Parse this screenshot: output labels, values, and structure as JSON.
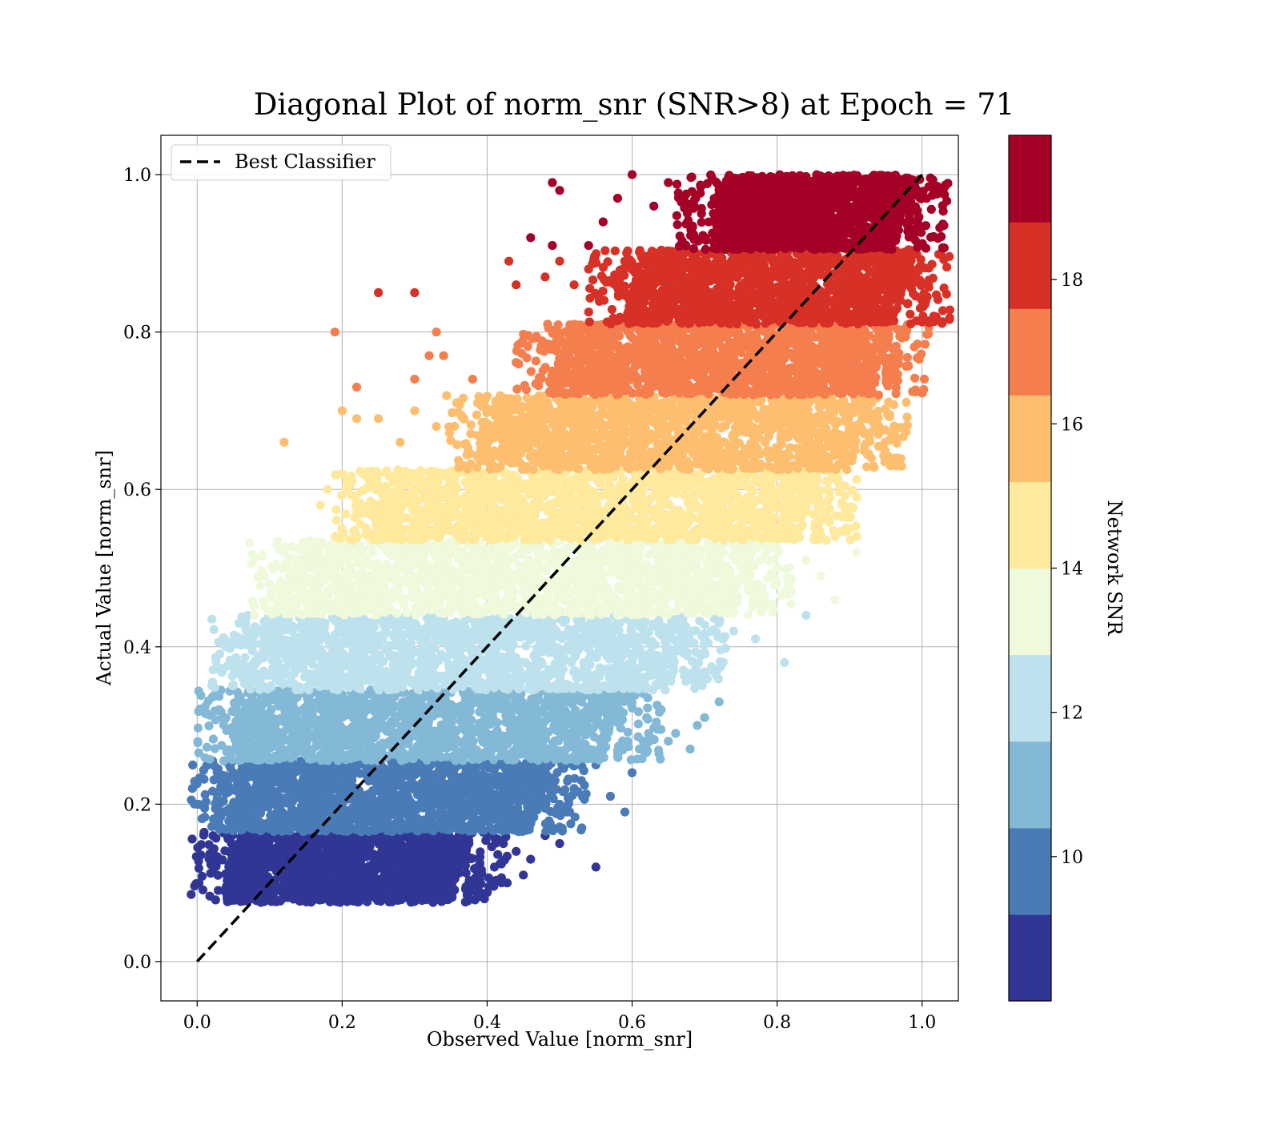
{
  "chart_data": {
    "type": "scatter",
    "title": "Diagonal Plot of norm_snr (SNR>8) at Epoch = 71",
    "xlabel": "Observed Value [norm_snr]",
    "ylabel": "Actual Value [norm_snr]",
    "xlim": [
      -0.05,
      1.05
    ],
    "ylim": [
      -0.05,
      1.05
    ],
    "x_ticks": [
      "0.0",
      "0.2",
      "0.4",
      "0.6",
      "0.8",
      "1.0"
    ],
    "y_ticks": [
      "0.0",
      "0.2",
      "0.4",
      "0.6",
      "0.8",
      "1.0"
    ],
    "grid": true,
    "legend": {
      "placement": "top-left",
      "entries": [
        "Best Classifier"
      ]
    },
    "best_classifier_line": {
      "style": "dashed",
      "color": "#000000",
      "x": [
        0,
        1
      ],
      "y": [
        0,
        1
      ]
    },
    "colorbar": {
      "label": "Network SNR",
      "range": [
        8,
        20
      ],
      "tick_values": [
        10,
        12,
        14,
        16,
        18
      ],
      "tick_labels": [
        "10",
        "12",
        "14",
        "16",
        "18"
      ],
      "colors": [
        "#313695",
        "#4a7bb7",
        "#83b8d7",
        "#bde2ee",
        "#eff9db",
        "#fee99d",
        "#fdbf6f",
        "#f57e4e",
        "#d73027",
        "#a50026"
      ]
    },
    "snr_bands": [
      {
        "snr_range": [
          8,
          9.2
        ],
        "color": "#313695",
        "y_range": [
          0.075,
          0.165
        ],
        "dense_x": [
          0.05,
          0.37
        ],
        "stragglers": [
          [
            0.04,
            0.095
          ],
          [
            0.39,
            0.083
          ],
          [
            0.42,
            0.1
          ],
          [
            0.44,
            0.14
          ],
          [
            0.46,
            0.13
          ],
          [
            0.5,
            0.15
          ],
          [
            0.55,
            0.12
          ],
          [
            0.48,
            0.16
          ],
          [
            0.41,
            0.12
          ],
          [
            0.45,
            0.11
          ]
        ]
      },
      {
        "snr_range": [
          9.2,
          10.4
        ],
        "color": "#4a7bb7",
        "y_range": [
          0.165,
          0.255
        ],
        "dense_x": [
          0.05,
          0.48
        ],
        "stragglers": [
          [
            0.05,
            0.24
          ],
          [
            0.5,
            0.2
          ],
          [
            0.52,
            0.22
          ],
          [
            0.57,
            0.21
          ],
          [
            0.59,
            0.19
          ],
          [
            0.6,
            0.24
          ],
          [
            0.55,
            0.25
          ],
          [
            0.53,
            0.23
          ],
          [
            0.51,
            0.19
          ],
          [
            0.49,
            0.17
          ]
        ]
      },
      {
        "snr_range": [
          10.4,
          11.6
        ],
        "color": "#83b8d7",
        "y_range": [
          0.255,
          0.345
        ],
        "dense_x": [
          0.06,
          0.58
        ],
        "stragglers": [
          [
            0.06,
            0.29
          ],
          [
            0.62,
            0.31
          ],
          [
            0.64,
            0.32
          ],
          [
            0.66,
            0.29
          ],
          [
            0.69,
            0.3
          ],
          [
            0.7,
            0.31
          ],
          [
            0.72,
            0.33
          ],
          [
            0.68,
            0.27
          ],
          [
            0.65,
            0.28
          ],
          [
            0.61,
            0.27
          ]
        ]
      },
      {
        "snr_range": [
          11.6,
          12.8
        ],
        "color": "#bde2ee",
        "y_range": [
          0.345,
          0.44
        ],
        "dense_x": [
          0.08,
          0.67
        ],
        "stragglers": [
          [
            0.07,
            0.44
          ],
          [
            0.07,
            0.37
          ],
          [
            0.7,
            0.41
          ],
          [
            0.72,
            0.43
          ],
          [
            0.74,
            0.42
          ],
          [
            0.77,
            0.41
          ],
          [
            0.81,
            0.38
          ],
          [
            0.84,
            0.44
          ],
          [
            0.68,
            0.36
          ],
          [
            0.71,
            0.37
          ]
        ]
      },
      {
        "snr_range": [
          12.8,
          14
        ],
        "color": "#eff9db",
        "y_range": [
          0.44,
          0.535
        ],
        "dense_x": [
          0.13,
          0.76
        ],
        "stragglers": [
          [
            0.1,
            0.48
          ],
          [
            0.11,
            0.53
          ],
          [
            0.12,
            0.52
          ],
          [
            0.14,
            0.5
          ],
          [
            0.8,
            0.5
          ],
          [
            0.82,
            0.47
          ],
          [
            0.84,
            0.51
          ],
          [
            0.86,
            0.49
          ],
          [
            0.88,
            0.46
          ],
          [
            0.91,
            0.52
          ]
        ]
      },
      {
        "snr_range": [
          14,
          15.2
        ],
        "color": "#fee99d",
        "y_range": [
          0.535,
          0.625
        ],
        "dense_x": [
          0.25,
          0.85
        ],
        "stragglers": [
          [
            0.17,
            0.58
          ],
          [
            0.18,
            0.6
          ],
          [
            0.2,
            0.62
          ],
          [
            0.22,
            0.57
          ],
          [
            0.87,
            0.6
          ],
          [
            0.89,
            0.58
          ],
          [
            0.9,
            0.55
          ],
          [
            0.88,
            0.54
          ],
          [
            0.86,
            0.56
          ],
          [
            0.91,
            0.59
          ]
        ]
      },
      {
        "snr_range": [
          15.2,
          16.4
        ],
        "color": "#fdbf6f",
        "y_range": [
          0.625,
          0.72
        ],
        "dense_x": [
          0.4,
          0.92
        ],
        "stragglers": [
          [
            0.12,
            0.66
          ],
          [
            0.2,
            0.7
          ],
          [
            0.22,
            0.69
          ],
          [
            0.25,
            0.69
          ],
          [
            0.28,
            0.66
          ],
          [
            0.3,
            0.7
          ],
          [
            0.33,
            0.68
          ],
          [
            0.92,
            0.65
          ],
          [
            0.93,
            0.69
          ],
          [
            0.94,
            0.67
          ]
        ]
      },
      {
        "snr_range": [
          16.4,
          17.6
        ],
        "color": "#f57e4e",
        "y_range": [
          0.72,
          0.81
        ],
        "dense_x": [
          0.5,
          0.95
        ],
        "stragglers": [
          [
            0.19,
            0.8
          ],
          [
            0.22,
            0.73
          ],
          [
            0.3,
            0.74
          ],
          [
            0.32,
            0.77
          ],
          [
            0.33,
            0.8
          ],
          [
            0.34,
            0.77
          ],
          [
            0.38,
            0.74
          ],
          [
            0.96,
            0.75
          ],
          [
            0.94,
            0.72
          ],
          [
            0.96,
            0.78
          ]
        ]
      },
      {
        "snr_range": [
          17.6,
          18.8
        ],
        "color": "#d73027",
        "y_range": [
          0.81,
          0.905
        ],
        "dense_x": [
          0.6,
          0.98
        ],
        "stragglers": [
          [
            0.25,
            0.85
          ],
          [
            0.3,
            0.85
          ],
          [
            0.43,
            0.89
          ],
          [
            0.44,
            0.86
          ],
          [
            0.48,
            0.87
          ],
          [
            0.5,
            0.89
          ],
          [
            0.52,
            0.86
          ],
          [
            0.54,
            0.88
          ],
          [
            0.98,
            0.86
          ],
          [
            0.97,
            0.84
          ]
        ]
      },
      {
        "snr_range": [
          18.8,
          20
        ],
        "color": "#a50026",
        "y_range": [
          0.905,
          1.0
        ],
        "dense_x": [
          0.72,
          0.98
        ],
        "stragglers": [
          [
            0.46,
            0.92
          ],
          [
            0.49,
            0.91
          ],
          [
            0.49,
            0.99
          ],
          [
            0.5,
            0.98
          ],
          [
            0.54,
            0.91
          ],
          [
            0.56,
            0.94
          ],
          [
            0.58,
            0.97
          ],
          [
            0.6,
            1.0
          ],
          [
            0.63,
            0.96
          ],
          [
            0.65,
            0.99
          ]
        ]
      }
    ]
  }
}
